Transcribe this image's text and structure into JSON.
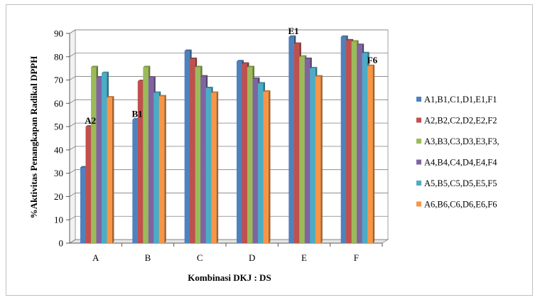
{
  "chart_data": {
    "type": "bar",
    "title": "",
    "xlabel": "Kombinasi DKJ : DS",
    "ylabel": "%Aktivitas Penangkapan Radikal DPPH",
    "ylim": [
      0,
      90
    ],
    "yticks": [
      "0",
      "10",
      "20",
      "30",
      "40",
      "50",
      "60",
      "70",
      "80",
      "90"
    ],
    "grid": true,
    "legend_position": "right",
    "categories": [
      "A",
      "B",
      "C",
      "D",
      "E",
      "F"
    ],
    "series": [
      {
        "name": "A1,B1,C1,D1,E1,F1",
        "color": "#4F81BD",
        "values": [
          32.5,
          53,
          82.5,
          78,
          88.5,
          88.5
        ]
      },
      {
        "name": "A2,B2,C2,D2,E2,F2",
        "color": "#C0504D",
        "values": [
          50,
          69.5,
          79,
          77,
          85.5,
          87
        ]
      },
      {
        "name": "A3,B3,C3,D3,E3,F3,",
        "color": "#9BBB59",
        "values": [
          75.5,
          75.5,
          75.5,
          75.5,
          80,
          86.5
        ]
      },
      {
        "name": "A4,B4,C4,D4,E4,F4",
        "color": "#8064A2",
        "values": [
          71,
          71,
          71.5,
          70.5,
          79,
          85
        ]
      },
      {
        "name": "A5,B5,C5,D5,E5,F5",
        "color": "#4BACC6",
        "values": [
          73,
          64.5,
          66.5,
          68.5,
          75,
          81.5
        ]
      },
      {
        "name": "A6,B6,C6,D6,E6,F6",
        "color": "#F79646",
        "values": [
          62.5,
          63,
          64.5,
          65,
          71.5,
          76
        ]
      }
    ],
    "annotations": [
      {
        "text": "A2",
        "category": "A",
        "series": 1
      },
      {
        "text": "B1",
        "category": "B",
        "series": 0
      },
      {
        "text": "E1",
        "category": "E",
        "series": 0
      },
      {
        "text": "F6",
        "category": "F",
        "series": 5
      }
    ]
  }
}
